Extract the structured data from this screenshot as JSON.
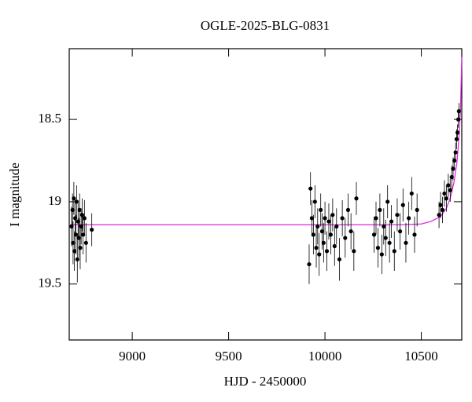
{
  "chart_data": {
    "type": "scatter",
    "title": "OGLE-2025-BLG-0831",
    "x_label": "HJD - 2450000",
    "y_label": "I magnitude",
    "xlim": [
      8673,
      10710
    ],
    "ylim": [
      19.84,
      18.07
    ],
    "xticks": [
      9000,
      9500,
      10000,
      10500
    ],
    "yticks": [
      18.5,
      19,
      19.5
    ],
    "series": [
      {
        "color": "#000000",
        "x": [
          8685,
          8690,
          8693,
          8697,
          8700,
          8704,
          8708,
          8712,
          8715,
          8719,
          8723,
          8727,
          8730,
          8735,
          8740,
          8745,
          8752,
          8760,
          8790,
          9918,
          9925,
          9932,
          9940,
          9948,
          9955,
          9962,
          9970,
          9978,
          9985,
          9993,
          10000,
          10010,
          10020,
          10030,
          10040,
          10050,
          10060,
          10075,
          10090,
          10105,
          10120,
          10135,
          10150,
          10163,
          10255,
          10265,
          10275,
          10285,
          10295,
          10305,
          10315,
          10325,
          10335,
          10345,
          10360,
          10375,
          10390,
          10405,
          10420,
          10435,
          10450,
          10465,
          10478,
          10592,
          10600,
          10610,
          10620,
          10630,
          10640,
          10650,
          10658,
          10665,
          10672,
          10678,
          10683,
          10688,
          10692,
          10695
        ],
        "values": [
          19.15,
          19.05,
          19.25,
          18.98,
          19.3,
          19.1,
          19.2,
          19.0,
          19.35,
          19.12,
          19.22,
          19.05,
          19.28,
          19.15,
          19.08,
          19.2,
          19.1,
          19.25,
          19.17,
          19.38,
          18.92,
          19.1,
          19.2,
          19.0,
          19.28,
          19.15,
          19.32,
          19.05,
          19.18,
          19.25,
          19.1,
          19.3,
          19.12,
          19.2,
          19.08,
          19.27,
          19.15,
          19.35,
          19.1,
          19.22,
          19.05,
          19.18,
          19.3,
          18.98,
          19.2,
          19.1,
          19.28,
          19.05,
          19.32,
          19.15,
          19.22,
          19.0,
          19.25,
          19.12,
          19.3,
          19.08,
          19.18,
          19.02,
          19.25,
          19.1,
          18.95,
          19.2,
          19.05,
          19.08,
          19.02,
          19.05,
          18.95,
          18.98,
          18.9,
          18.93,
          18.85,
          18.8,
          18.75,
          18.7,
          18.62,
          18.58,
          18.5,
          18.45
        ],
        "errors": [
          0.12,
          0.1,
          0.13,
          0.1,
          0.12,
          0.11,
          0.12,
          0.1,
          0.14,
          0.11,
          0.12,
          0.1,
          0.13,
          0.11,
          0.1,
          0.12,
          0.11,
          0.12,
          0.1,
          0.12,
          0.1,
          0.11,
          0.12,
          0.1,
          0.12,
          0.11,
          0.13,
          0.1,
          0.11,
          0.12,
          0.1,
          0.12,
          0.11,
          0.12,
          0.1,
          0.12,
          0.11,
          0.13,
          0.11,
          0.12,
          0.1,
          0.11,
          0.12,
          0.1,
          0.11,
          0.1,
          0.12,
          0.1,
          0.12,
          0.11,
          0.11,
          0.1,
          0.12,
          0.1,
          0.12,
          0.1,
          0.11,
          0.1,
          0.12,
          0.1,
          0.1,
          0.11,
          0.1,
          0.08,
          0.08,
          0.08,
          0.08,
          0.08,
          0.07,
          0.07,
          0.07,
          0.07,
          0.06,
          0.06,
          0.06,
          0.05,
          0.05,
          0.05
        ]
      },
      {
        "type": "line",
        "color": "#e020e0",
        "x": [
          8673,
          10400,
          10500,
          10550,
          10600,
          10630,
          10650,
          10670,
          10685,
          10695,
          10703,
          10710
        ],
        "values": [
          19.14,
          19.14,
          19.135,
          19.12,
          19.09,
          19.04,
          18.98,
          18.88,
          18.76,
          18.62,
          18.45,
          18.12
        ]
      }
    ]
  }
}
